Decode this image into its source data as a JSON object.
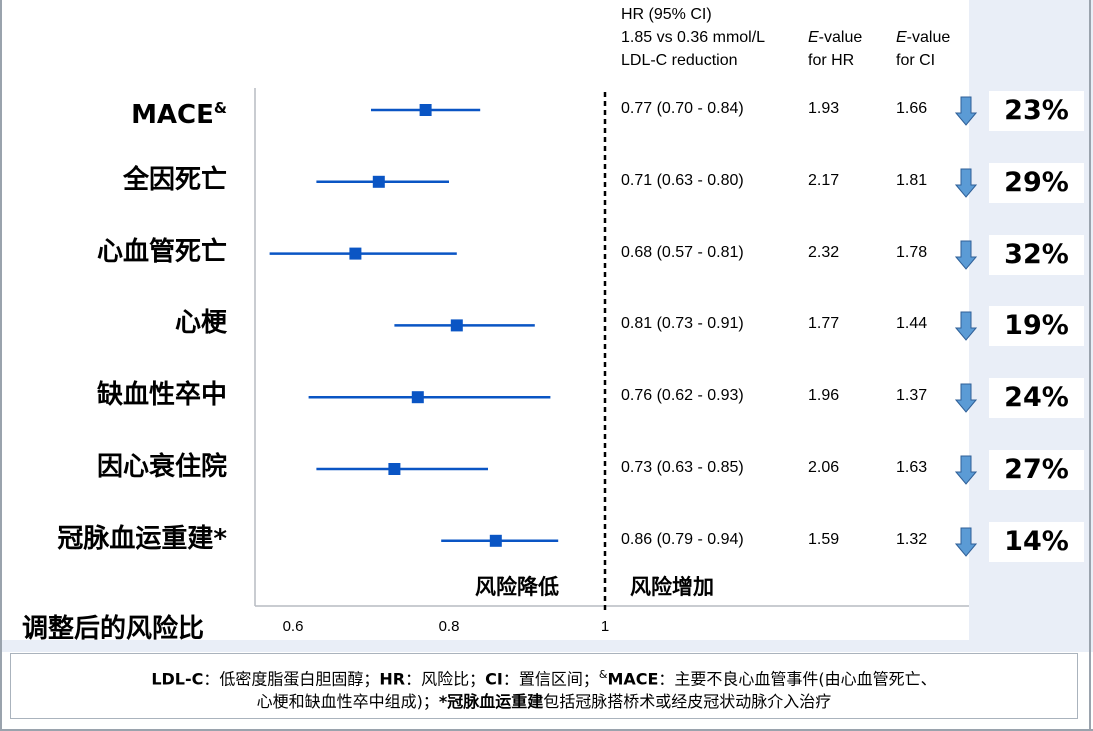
{
  "header": {
    "col_hr_line1": "HR (95% CI)",
    "col_hr_line2": "1.85 vs 0.36 mmol/L",
    "col_hr_line3": "LDL-C reduction",
    "col_ehr_italic": "E",
    "col_ehr_line1": "-value",
    "col_ehr_line2": "for HR",
    "col_eci_italic": "E",
    "col_eci_line1": "-value",
    "col_eci_line2": "for CI"
  },
  "rows": [
    {
      "label": "MACE",
      "sup": "&",
      "hr_text": "0.77 (0.70 - 0.84)",
      "e_hr": "1.93",
      "e_ci": "1.66",
      "reduction": "23%"
    },
    {
      "label": "全因死亡",
      "sup": "",
      "hr_text": "0.71 (0.63 - 0.80)",
      "e_hr": "2.17",
      "e_ci": "1.81",
      "reduction": "29%"
    },
    {
      "label": "心血管死亡",
      "sup": "",
      "hr_text": "0.68 (0.57 - 0.81)",
      "e_hr": "2.32",
      "e_ci": "1.78",
      "reduction": "32%"
    },
    {
      "label": "心梗",
      "sup": "",
      "hr_text": "0.81 (0.73 - 0.91)",
      "e_hr": "1.77",
      "e_ci": "1.44",
      "reduction": "19%"
    },
    {
      "label": "缺血性卒中",
      "sup": "",
      "hr_text": "0.76 (0.62 - 0.93)",
      "e_hr": "1.96",
      "e_ci": "1.37",
      "reduction": "24%"
    },
    {
      "label": "因心衰住院",
      "sup": "",
      "hr_text": "0.73 (0.63 - 0.85)",
      "e_hr": "2.06",
      "e_ci": "1.63",
      "reduction": "27%"
    },
    {
      "label": "冠脉血运重建*",
      "sup": "",
      "hr_text": "0.86 (0.79 - 0.94)",
      "e_hr": "1.59",
      "e_ci": "1.32",
      "reduction": "14%"
    }
  ],
  "chart_data": {
    "type": "scatter",
    "subtype": "forest-plot",
    "ylabel": "调整后的风险比",
    "xlim": [
      0.55,
      1.0
    ],
    "xticks": [
      "0.6",
      "0.8",
      "1"
    ],
    "reference_line": 1.0,
    "left_region_label": "风险降低",
    "right_region_label": "风险增加",
    "categories": [
      "MACE&",
      "全因死亡",
      "心血管死亡",
      "心梗",
      "缺血性卒中",
      "因心衰住院",
      "冠脉血运重建*"
    ],
    "series": [
      {
        "hr": [
          0.77,
          0.71,
          0.68,
          0.81,
          0.76,
          0.73,
          0.86
        ],
        "lower": [
          0.7,
          0.63,
          0.57,
          0.73,
          0.62,
          0.63,
          0.79
        ],
        "upper": [
          0.84,
          0.8,
          0.81,
          0.91,
          0.93,
          0.85,
          0.94
        ]
      }
    ],
    "colors": {
      "marker": "#0a55c4",
      "ref_line": "#000000",
      "axis": "#b7bcc2"
    }
  },
  "arrow_color": "#5b9bd5",
  "footnote": {
    "p1_b": "LDL-C",
    "p1": "：低密度脂蛋白胆固醇；",
    "p2_b": "HR",
    "p2": "：风险比；",
    "p3_b": "CI",
    "p3": "：置信区间；",
    "p4_sup": "&",
    "p4_b": "MACE",
    "p4": "：主要不良心血管事件(由心血管死亡、",
    "p5": "心梗和缺血性卒中组成)；",
    "p6_b": "*冠脉血运重建",
    "p6": "包括冠脉搭桥术或经皮冠状动脉介入治疗"
  }
}
